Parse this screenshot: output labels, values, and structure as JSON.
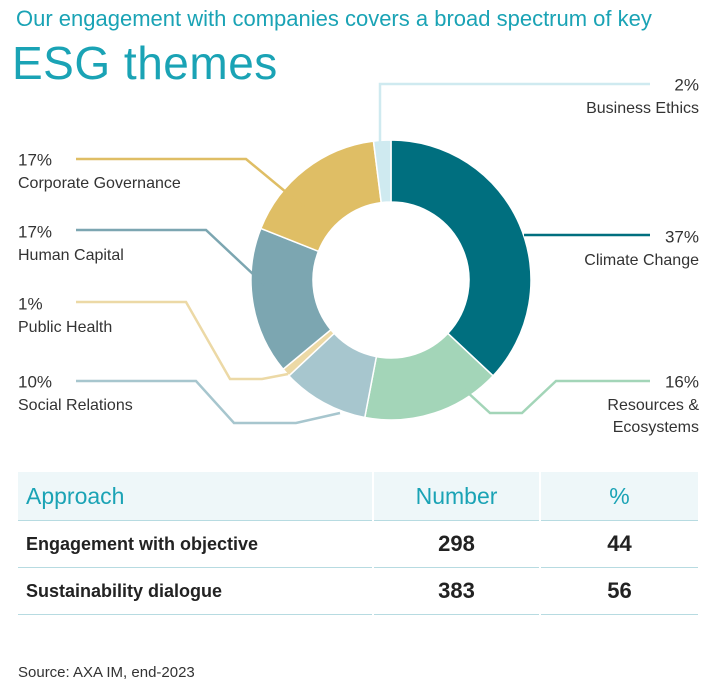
{
  "header": {
    "subtitle": "Our engagement with  companies covers a broad spectrum of key",
    "title": "ESG themes"
  },
  "chart_data": {
    "type": "pie",
    "style": "donut",
    "slices": [
      {
        "label_lines": [
          "Climate Change"
        ],
        "pct_label": "37%",
        "value": 37,
        "color": "#006f7f"
      },
      {
        "label_lines": [
          "Resources &",
          "Ecosystems"
        ],
        "pct_label": "16%",
        "value": 16,
        "color": "#a3d5b8"
      },
      {
        "label_lines": [
          "Social Relations"
        ],
        "pct_label": "10%",
        "value": 10,
        "color": "#a7c6ce"
      },
      {
        "label_lines": [
          "Public Health"
        ],
        "pct_label": "1%",
        "value": 1,
        "color": "#ecd9a6"
      },
      {
        "label_lines": [
          "Human Capital"
        ],
        "pct_label": "17%",
        "value": 17,
        "color": "#7ca6b1"
      },
      {
        "label_lines": [
          "Corporate Governance"
        ],
        "pct_label": "17%",
        "value": 17,
        "color": "#dfbe65"
      },
      {
        "label_lines": [
          "Business Ethics"
        ],
        "pct_label": "2%",
        "value": 2,
        "color": "#cfeaf0"
      }
    ]
  },
  "table": {
    "headers": [
      "Approach",
      "Number",
      "%"
    ],
    "rows": [
      [
        "Engagement with objective",
        "298",
        "44"
      ],
      [
        "Sustainability dialogue",
        "383",
        "56"
      ]
    ]
  },
  "source": "Source: AXA IM, end-2023"
}
